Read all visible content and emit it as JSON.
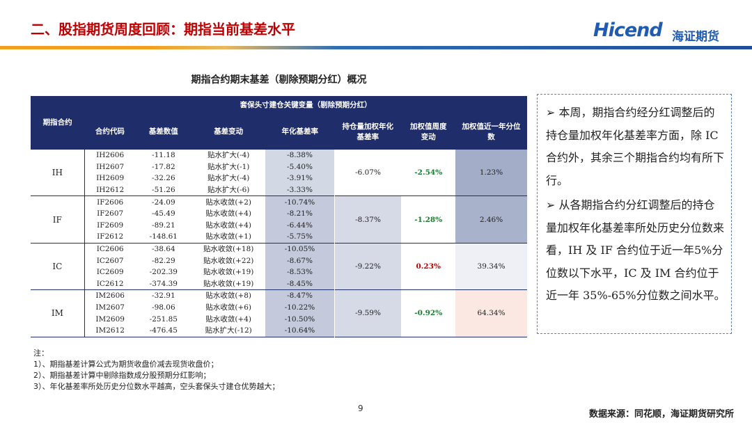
{
  "header": {
    "title": "二、股指期货周度回顾：期指当前基差水平",
    "logo": "Hicend",
    "logo_cn": "海证期货"
  },
  "table": {
    "title": "期指合约期末基差（剔除预期分红）概况",
    "first_column": "期指合约",
    "group_header": "套保头寸建仓关键变量（剔除预期分红）",
    "columns": [
      "合约代码",
      "基差数值",
      "基差变动",
      "年化基差率",
      "持仓量加权年化基差率",
      "加权值周度变动",
      "加权值近一年分位数"
    ],
    "groups": [
      {
        "name": "IH",
        "rows": [
          [
            "IH2606",
            "-11.18",
            "贴水扩大(-4)",
            "-8.38%"
          ],
          [
            "IH2607",
            "-17.82",
            "贴水扩大(-1)",
            "-5.40%"
          ],
          [
            "IH2609",
            "-32.26",
            "贴水扩大(-4)",
            "-3.91%"
          ],
          [
            "IH2612",
            "-51.26",
            "贴水扩大(-6)",
            "-3.33%"
          ]
        ],
        "weighted": "-6.07%",
        "change": "-2.54%",
        "percentile": "1.23%"
      },
      {
        "name": "IF",
        "rows": [
          [
            "IF2606",
            "-24.09",
            "贴水收敛(+2)",
            "-10.74%"
          ],
          [
            "IF2607",
            "-45.49",
            "贴水收敛(+4)",
            "-8.21%"
          ],
          [
            "IF2609",
            "-89.21",
            "贴水收敛(+4)",
            "-6.44%"
          ],
          [
            "IF2612",
            "-148.61",
            "贴水收敛(+1)",
            "-5.75%"
          ]
        ],
        "weighted": "-8.37%",
        "change": "-1.28%",
        "percentile": "2.46%"
      },
      {
        "name": "IC",
        "rows": [
          [
            "IC2606",
            "-38.64",
            "贴水收敛(+18)",
            "-10.05%"
          ],
          [
            "IC2607",
            "-82.29",
            "贴水收敛(+22)",
            "-8.67%"
          ],
          [
            "IC2609",
            "-202.39",
            "贴水收敛(+19)",
            "-8.53%"
          ],
          [
            "IC2612",
            "-374.39",
            "贴水收敛(+19)",
            "-8.45%"
          ]
        ],
        "weighted": "-9.22%",
        "change": "0.23%",
        "percentile": "39.34%"
      },
      {
        "name": "IM",
        "rows": [
          [
            "IM2606",
            "-32.91",
            "贴水收敛(+8)",
            "-8.47%"
          ],
          [
            "IM2607",
            "-98.06",
            "贴水收敛(+6)",
            "-10.22%"
          ],
          [
            "IM2609",
            "-251.85",
            "贴水收敛(+4)",
            "-10.50%"
          ],
          [
            "IM2612",
            "-476.45",
            "贴水扩大(-12)",
            "-10.64%"
          ]
        ],
        "weighted": "-9.59%",
        "change": "-0.92%",
        "percentile": "64.34%"
      }
    ]
  },
  "sidebar": {
    "bullets": [
      "➢ 本周，期指合约经分红调整后的持仓量加权年化基差率方面，除 IC 合约外，其余三个期指合约均有所下行。",
      "➢ 从各期指合约分红调整后的持仓量加权年化基差率所处历史分位数来看，IH 及 IF 合约位于近一年5%分位数以下水平，IC 及 IM 合约位于近一年 35%-65%分位数之间水平。"
    ]
  },
  "notes": {
    "title": "注：",
    "items": [
      "1）、期指基差计算公式为期货收盘价减去现货收盘价；",
      "2）、期指基差计算中剔除指数成分股预期分红影响；",
      "3）、年化基差率所处历史分位数水平越高，空头套保头寸建仓优势越大；"
    ]
  },
  "page_number": "9",
  "source": "数据来源：同花顺，海证期货研究所"
}
